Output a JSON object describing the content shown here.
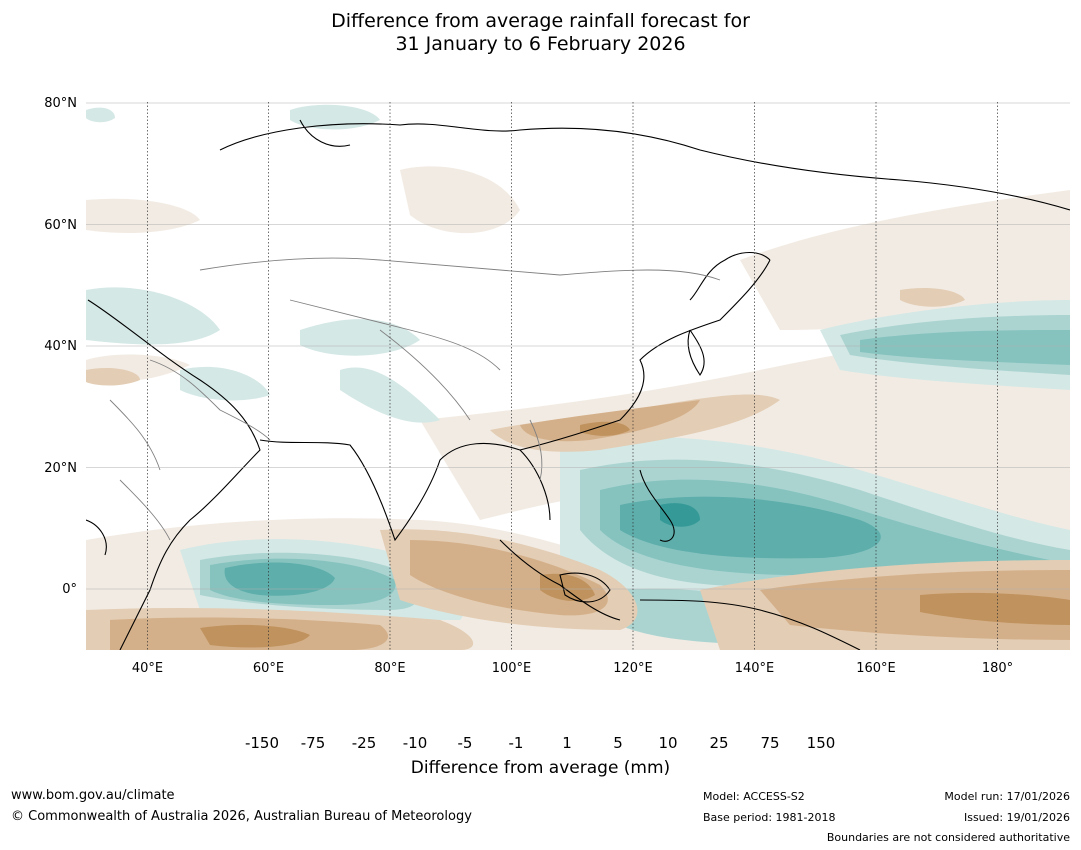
{
  "title": {
    "line1": "Difference from average rainfall forecast for",
    "line2": "31 January to 6 February 2026"
  },
  "map": {
    "lat_labels": [
      "80°N",
      "60°N",
      "40°N",
      "20°N",
      "0°"
    ],
    "lon_labels": [
      "40°E",
      "60°E",
      "80°E",
      "100°E",
      "120°E",
      "140°E",
      "160°E",
      "180°"
    ],
    "extent": {
      "lon": [
        30,
        190
      ],
      "lat": [
        -10,
        80
      ]
    }
  },
  "colorbar": {
    "title": "Difference from average (mm)",
    "tick_labels": [
      "-150",
      "-75",
      "-25",
      "-10",
      "-5",
      "-1",
      "1",
      "5",
      "10",
      "25",
      "75",
      "150"
    ],
    "colors": [
      "#a8733b",
      "#c0935e",
      "#d4b08a",
      "#e3cdb4",
      "#f2ebe3",
      "#ffffff",
      "#d4e8e6",
      "#abd4d1",
      "#86c3bf",
      "#5eaeab",
      "#359a97",
      "#2a7a76"
    ]
  },
  "footer": {
    "website": "www.bom.gov.au/climate",
    "copyright": "© Commonwealth of Australia 2026, Australian Bureau of Meteorology",
    "model": "Model: ACCESS-S2",
    "base_period": "Base period: 1981-2018",
    "model_run": "Model run: 17/01/2026",
    "issued": "Issued: 19/01/2026",
    "boundaries_note": "Boundaries are not considered authoritative"
  }
}
